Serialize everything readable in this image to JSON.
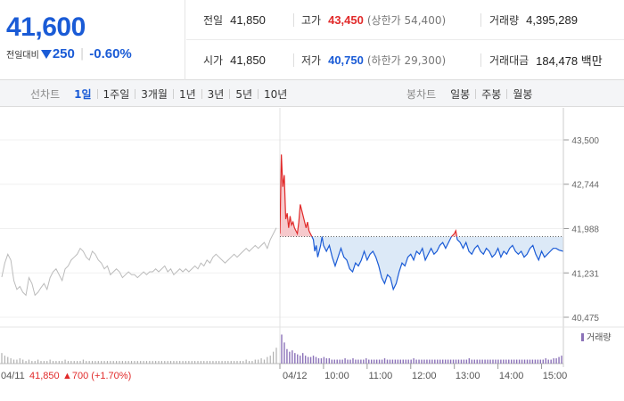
{
  "quote": {
    "price": "41,600",
    "change_label": "전일대비",
    "change_arrow_icon": "triangle-down-icon",
    "change": "250",
    "change_pct": "-0.60%",
    "prev_close_label": "전일",
    "prev_close": "41,850",
    "high_label": "고가",
    "high": "43,450",
    "upper_limit": "(상한가 54,400)",
    "volume_label": "거래량",
    "volume": "4,395,289",
    "open_label": "시가",
    "open": "41,850",
    "low_label": "저가",
    "low": "40,750",
    "lower_limit": "(하한가 29,300)",
    "value_label": "거래대금",
    "value": "184,478 백만"
  },
  "tabs": {
    "line_title": "선차트",
    "periods": [
      "1일",
      "1주일",
      "3개월",
      "1년",
      "3년",
      "5년",
      "10년"
    ],
    "active_period": "1일",
    "candle_title": "봉차트",
    "candles": [
      "일봉",
      "주봉",
      "월봉"
    ]
  },
  "colors": {
    "up": "#e12a2a",
    "down": "#1a5bd6",
    "prev_day_line": "#bbbbbb",
    "volume_bar": "#8b72b8"
  },
  "chart_data": {
    "type": "line",
    "y_ticks": [
      "43,500",
      "42,744",
      "41,988",
      "41,231",
      "40,475"
    ],
    "ylim": [
      40475,
      43500
    ],
    "reference_price": 41850,
    "prev_day_label": "04/11",
    "prev_day_info": "41,850",
    "prev_day_change": "▲700 (+1.70%)",
    "prev_day_series": [
      41160,
      41400,
      41550,
      41450,
      41100,
      40950,
      41000,
      40900,
      40850,
      41150,
      41050,
      40850,
      40900,
      40980,
      41050,
      40950,
      41150,
      41250,
      41300,
      41200,
      41100,
      41300,
      41350,
      41450,
      41500,
      41550,
      41650,
      41600,
      41500,
      41450,
      41600,
      41550,
      41450,
      41400,
      41300,
      41350,
      41200,
      41250,
      41300,
      41250,
      41150,
      41200,
      41250,
      41200,
      41200,
      41150,
      41200,
      41250,
      41200,
      41250,
      41250,
      41300,
      41250,
      41300,
      41350,
      41250,
      41300,
      41200,
      41250,
      41300,
      41250,
      41300,
      41250,
      41300,
      41350,
      41300,
      41400,
      41350,
      41450,
      41400,
      41500,
      41550,
      41500,
      41450,
      41400,
      41450,
      41500,
      41550,
      41500,
      41550,
      41600,
      41650,
      41600,
      41650,
      41700,
      41650,
      41700,
      41750,
      41650,
      41800,
      41900,
      42000
    ],
    "today_label": "04/12",
    "x_ticks": [
      "10:00",
      "11:00",
      "12:00",
      "13:00",
      "14:00",
      "15:00"
    ],
    "today_series": [
      [
        "09:00",
        41900
      ],
      [
        "09:02",
        43250
      ],
      [
        "09:04",
        42700
      ],
      [
        "09:06",
        42900
      ],
      [
        "09:08",
        42150
      ],
      [
        "09:10",
        42250
      ],
      [
        "09:12",
        42000
      ],
      [
        "09:14",
        42200
      ],
      [
        "09:16",
        42050
      ],
      [
        "09:18",
        42100
      ],
      [
        "09:20",
        42000
      ],
      [
        "09:22",
        41950
      ],
      [
        "09:24",
        41900
      ],
      [
        "09:26",
        42100
      ],
      [
        "09:28",
        42400
      ],
      [
        "09:30",
        42300
      ],
      [
        "09:32",
        42200
      ],
      [
        "09:34",
        42100
      ],
      [
        "09:36",
        42000
      ],
      [
        "09:38",
        42100
      ],
      [
        "09:40",
        41950
      ],
      [
        "09:42",
        41900
      ],
      [
        "09:44",
        41850
      ],
      [
        "09:46",
        41800
      ],
      [
        "09:48",
        41600
      ],
      [
        "09:50",
        41700
      ],
      [
        "09:52",
        41500
      ],
      [
        "09:54",
        41600
      ],
      [
        "09:56",
        41700
      ],
      [
        "09:58",
        41850
      ],
      [
        "10:00",
        41700
      ],
      [
        "10:04",
        41600
      ],
      [
        "10:08",
        41700
      ],
      [
        "10:12",
        41500
      ],
      [
        "10:16",
        41350
      ],
      [
        "10:20",
        41500
      ],
      [
        "10:24",
        41650
      ],
      [
        "10:28",
        41500
      ],
      [
        "10:32",
        41450
      ],
      [
        "10:36",
        41300
      ],
      [
        "10:40",
        41250
      ],
      [
        "10:44",
        41400
      ],
      [
        "10:48",
        41350
      ],
      [
        "10:52",
        41450
      ],
      [
        "10:56",
        41600
      ],
      [
        "11:00",
        41450
      ],
      [
        "11:04",
        41550
      ],
      [
        "11:08",
        41600
      ],
      [
        "11:12",
        41500
      ],
      [
        "11:16",
        41350
      ],
      [
        "11:20",
        41150
      ],
      [
        "11:24",
        41050
      ],
      [
        "11:28",
        41200
      ],
      [
        "11:32",
        41150
      ],
      [
        "11:36",
        40950
      ],
      [
        "11:40",
        41050
      ],
      [
        "11:44",
        41250
      ],
      [
        "11:48",
        41400
      ],
      [
        "11:52",
        41350
      ],
      [
        "11:56",
        41500
      ],
      [
        "12:00",
        41550
      ],
      [
        "12:04",
        41450
      ],
      [
        "12:08",
        41600
      ],
      [
        "12:12",
        41550
      ],
      [
        "12:16",
        41650
      ],
      [
        "12:20",
        41450
      ],
      [
        "12:24",
        41550
      ],
      [
        "12:28",
        41650
      ],
      [
        "12:32",
        41550
      ],
      [
        "12:36",
        41600
      ],
      [
        "12:40",
        41700
      ],
      [
        "12:44",
        41750
      ],
      [
        "12:48",
        41650
      ],
      [
        "12:52",
        41750
      ],
      [
        "12:56",
        41850
      ],
      [
        "13:00",
        41900
      ],
      [
        "13:02",
        41950
      ],
      [
        "13:04",
        41800
      ],
      [
        "13:08",
        41750
      ],
      [
        "13:12",
        41650
      ],
      [
        "13:16",
        41750
      ],
      [
        "13:20",
        41600
      ],
      [
        "13:24",
        41550
      ],
      [
        "13:28",
        41650
      ],
      [
        "13:32",
        41700
      ],
      [
        "13:36",
        41600
      ],
      [
        "13:40",
        41550
      ],
      [
        "13:44",
        41650
      ],
      [
        "13:48",
        41600
      ],
      [
        "13:52",
        41500
      ],
      [
        "13:56",
        41550
      ],
      [
        "14:00",
        41650
      ],
      [
        "14:04",
        41500
      ],
      [
        "14:08",
        41600
      ],
      [
        "14:12",
        41550
      ],
      [
        "14:16",
        41650
      ],
      [
        "14:20",
        41700
      ],
      [
        "14:24",
        41600
      ],
      [
        "14:28",
        41550
      ],
      [
        "14:32",
        41600
      ],
      [
        "14:36",
        41500
      ],
      [
        "14:40",
        41550
      ],
      [
        "14:44",
        41650
      ],
      [
        "14:48",
        41700
      ],
      [
        "14:52",
        41550
      ],
      [
        "14:56",
        41450
      ],
      [
        "15:00",
        41600
      ],
      [
        "15:04",
        41500
      ],
      [
        "15:08",
        41550
      ],
      [
        "15:12",
        41600
      ],
      [
        "15:16",
        41650
      ],
      [
        "15:20",
        41650
      ],
      [
        "15:24",
        41620
      ],
      [
        "15:30",
        41600
      ]
    ],
    "volume_legend": "거래량",
    "prev_day_volume": [
      8,
      6,
      5,
      4,
      3,
      3,
      4,
      3,
      2,
      3,
      2,
      2,
      3,
      2,
      2,
      2,
      3,
      2,
      2,
      2,
      2,
      3,
      2,
      2,
      2,
      2,
      2,
      3,
      2,
      2,
      2,
      2,
      2,
      2,
      2,
      2,
      2,
      2,
      2,
      2,
      2,
      2,
      2,
      2,
      2,
      2,
      2,
      2,
      2,
      2,
      2,
      2,
      2,
      2,
      2,
      2,
      2,
      2,
      2,
      2,
      2,
      2,
      2,
      2,
      2,
      2,
      2,
      2,
      2,
      2,
      2,
      2,
      2,
      2,
      2,
      2,
      2,
      2,
      2,
      2,
      2,
      3,
      2,
      2,
      3,
      3,
      4,
      3,
      5,
      6,
      9,
      12
    ],
    "today_volume": [
      22,
      16,
      11,
      9,
      10,
      8,
      7,
      6,
      8,
      6,
      5,
      5,
      6,
      5,
      4,
      4,
      5,
      4,
      4,
      3,
      3,
      3,
      3,
      3,
      4,
      3,
      3,
      4,
      3,
      3,
      3,
      3,
      4,
      3,
      3,
      3,
      3,
      3,
      3,
      4,
      3,
      3,
      3,
      3,
      3,
      3,
      3,
      3,
      3,
      3,
      4,
      3,
      3,
      3,
      3,
      3,
      3,
      3,
      3,
      3,
      3,
      3,
      3,
      3,
      3,
      3,
      3,
      3,
      3,
      3,
      3,
      4,
      3,
      3,
      3,
      3,
      3,
      3,
      3,
      3,
      3,
      3,
      3,
      3,
      3,
      3,
      3,
      3,
      3,
      3,
      3,
      3,
      3,
      3,
      3,
      3,
      3,
      3,
      3,
      3,
      4,
      3,
      3,
      4,
      4,
      5,
      6
    ]
  }
}
